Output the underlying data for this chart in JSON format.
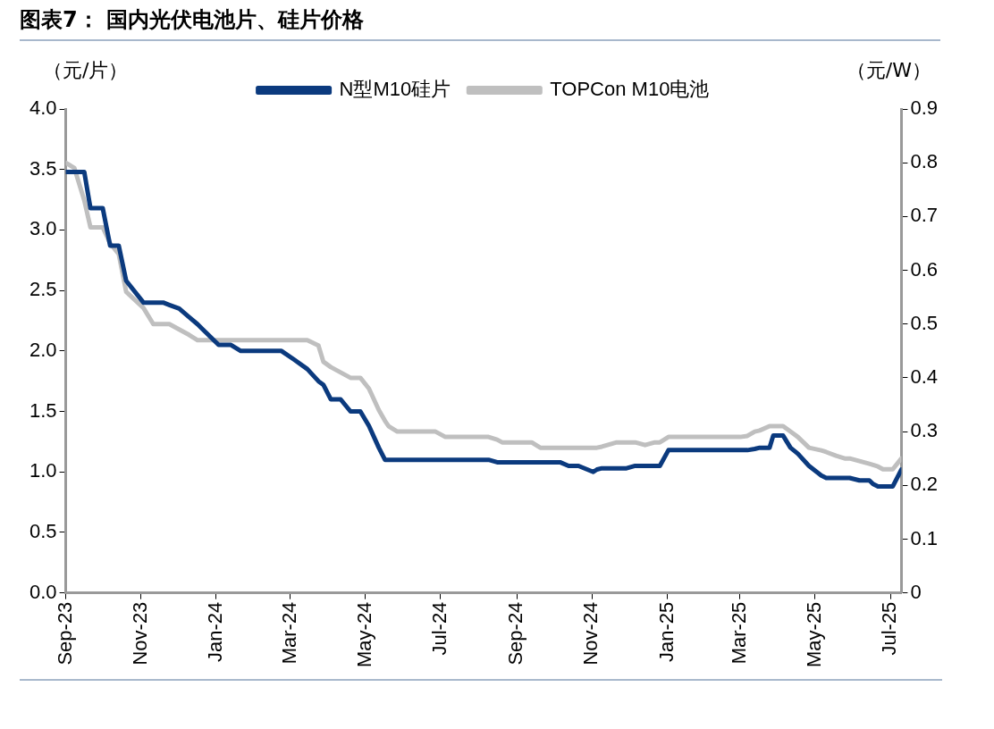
{
  "chart_data": {
    "type": "line",
    "title": "图表7：  国内光伏电池片、硅片价格",
    "ylabel": "（元/片）",
    "y2label": "（元/W）",
    "x": [
      "2023-09-01",
      "2023-09-08",
      "2023-09-16",
      "2023-09-21",
      "2023-10-01",
      "2023-10-07",
      "2023-10-14",
      "2023-10-20",
      "2023-11-03",
      "2023-11-11",
      "2023-11-19",
      "2023-11-24",
      "2023-12-02",
      "2023-12-10",
      "2023-12-17",
      "2023-12-21",
      "2024-01-03",
      "2024-01-13",
      "2024-01-21",
      "2024-02-23",
      "2024-03-04",
      "2024-03-15",
      "2024-03-24",
      "2024-03-28",
      "2024-04-03",
      "2024-04-11",
      "2024-04-19",
      "2024-04-27",
      "2024-05-04",
      "2024-05-12",
      "2024-05-17",
      "2024-05-20",
      "2024-05-27",
      "2024-06-27",
      "2024-07-05",
      "2024-08-09",
      "2024-08-16",
      "2024-08-20",
      "2024-09-13",
      "2024-09-20",
      "2024-10-06",
      "2024-10-13",
      "2024-10-21",
      "2024-11-02",
      "2024-11-05",
      "2024-11-09",
      "2024-11-21",
      "2024-11-29",
      "2024-12-06",
      "2024-12-14",
      "2024-12-22",
      "2024-12-26",
      "2025-01-02",
      "2025-03-01",
      "2025-03-07",
      "2025-03-13",
      "2025-03-17",
      "2025-03-25",
      "2025-03-28",
      "2025-04-05",
      "2025-04-11",
      "2025-04-17",
      "2025-04-26",
      "2025-05-06",
      "2025-05-10",
      "2025-05-18",
      "2025-05-25",
      "2025-05-29",
      "2025-06-06",
      "2025-06-14",
      "2025-06-17",
      "2025-06-21",
      "2025-06-25",
      "2025-07-03",
      "2025-07-10"
    ],
    "series": [
      {
        "name": "N型M10硅片",
        "color": "#0b3a7e",
        "values": [
          3.48,
          3.48,
          3.48,
          3.18,
          3.18,
          2.87,
          2.87,
          2.58,
          2.4,
          2.4,
          2.4,
          2.38,
          2.35,
          2.28,
          2.22,
          2.18,
          2.05,
          2.05,
          2.0,
          2.0,
          1.93,
          1.85,
          1.75,
          1.72,
          1.6,
          1.6,
          1.5,
          1.5,
          1.38,
          1.2,
          1.1,
          1.1,
          1.1,
          1.1,
          1.1,
          1.1,
          1.08,
          1.08,
          1.08,
          1.08,
          1.08,
          1.05,
          1.05,
          1.0,
          1.02,
          1.03,
          1.03,
          1.03,
          1.05,
          1.05,
          1.05,
          1.05,
          1.18,
          1.18,
          1.18,
          1.19,
          1.2,
          1.2,
          1.3,
          1.3,
          1.2,
          1.15,
          1.05,
          0.97,
          0.95,
          0.95,
          0.95,
          0.95,
          0.93,
          0.93,
          0.9,
          0.88,
          0.88,
          0.88,
          1.02
        ]
      },
      {
        "name": "TOPCon M10电池",
        "color": "#bfbfbf",
        "axis": "y2",
        "values": [
          0.8,
          0.79,
          0.73,
          0.68,
          0.68,
          0.65,
          0.63,
          0.56,
          0.53,
          0.5,
          0.5,
          0.5,
          0.49,
          0.48,
          0.47,
          0.47,
          0.47,
          0.47,
          0.47,
          0.47,
          0.47,
          0.47,
          0.46,
          0.43,
          0.42,
          0.41,
          0.4,
          0.4,
          0.38,
          0.34,
          0.32,
          0.31,
          0.3,
          0.3,
          0.29,
          0.29,
          0.285,
          0.28,
          0.28,
          0.27,
          0.27,
          0.27,
          0.27,
          0.27,
          0.27,
          0.272,
          0.28,
          0.28,
          0.28,
          0.275,
          0.28,
          0.28,
          0.29,
          0.29,
          0.292,
          0.3,
          0.302,
          0.31,
          0.31,
          0.31,
          0.3,
          0.29,
          0.27,
          0.265,
          0.262,
          0.255,
          0.25,
          0.25,
          0.245,
          0.24,
          0.238,
          0.235,
          0.23,
          0.23,
          0.25
        ]
      }
    ],
    "xlim": [
      "2023-09-01",
      "2025-07-10"
    ],
    "xticks": [
      {
        "value": "2023-09-01",
        "label": "Sep-23"
      },
      {
        "value": "2023-11-01",
        "label": "Nov-23"
      },
      {
        "value": "2024-01-01",
        "label": "Jan-24"
      },
      {
        "value": "2024-03-01",
        "label": "Mar-24"
      },
      {
        "value": "2024-05-01",
        "label": "May-24"
      },
      {
        "value": "2024-07-01",
        "label": "Jul-24"
      },
      {
        "value": "2024-09-01",
        "label": "Sep-24"
      },
      {
        "value": "2024-11-01",
        "label": "Nov-24"
      },
      {
        "value": "2025-01-01",
        "label": "Jan-25"
      },
      {
        "value": "2025-03-01",
        "label": "Mar-25"
      },
      {
        "value": "2025-05-01",
        "label": "May-25"
      },
      {
        "value": "2025-07-01",
        "label": "Jul-25"
      }
    ],
    "ylim": [
      0,
      4
    ],
    "yticks": [
      {
        "value": 0,
        "label": "0.0"
      },
      0.5,
      {
        "value": 1,
        "label": "1.0"
      },
      1.5,
      {
        "value": 2,
        "label": "2.0"
      },
      2.5,
      {
        "value": 3,
        "label": "3.0"
      },
      3.5,
      {
        "value": 4,
        "label": "4.0"
      }
    ],
    "y2lim": [
      0,
      0.9
    ],
    "y2ticks": [
      0,
      0.1,
      0.2,
      0.3,
      0.4,
      0.5,
      0.6,
      0.7,
      0.8,
      0.9
    ],
    "grid": false,
    "legend": "top",
    "marker": "none",
    "line_style": "solid"
  }
}
